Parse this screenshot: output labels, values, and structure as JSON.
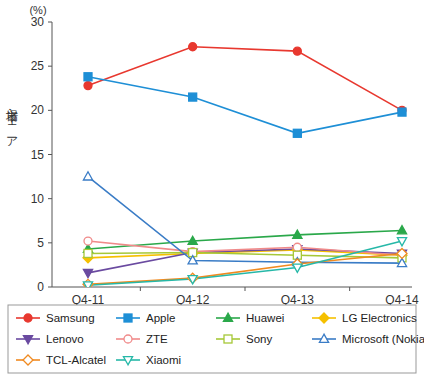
{
  "chart_data": {
    "type": "line",
    "y_label": "市場シェア",
    "y_unit_label": "(%)",
    "categories": [
      "Q4-11",
      "Q4-12",
      "Q4-13",
      "Q4-14"
    ],
    "ylim": [
      0,
      30
    ],
    "yticks": [
      0,
      5,
      10,
      15,
      20,
      25,
      30
    ],
    "grid": false,
    "legend": "bottom",
    "series": [
      {
        "name": "Samsung",
        "color": "#e8382f",
        "marker": "circle",
        "values": [
          22.8,
          27.2,
          26.7,
          20.0
        ]
      },
      {
        "name": "Apple",
        "color": "#1e8fd6",
        "marker": "square",
        "values": [
          23.8,
          21.5,
          17.4,
          19.8
        ]
      },
      {
        "name": "Huawei",
        "color": "#2aa84a",
        "marker": "triangle",
        "values": [
          4.3,
          5.2,
          5.9,
          6.4
        ]
      },
      {
        "name": "LG Electronics",
        "color": "#f5c000",
        "marker": "diamond",
        "values": [
          3.3,
          3.8,
          4.2,
          3.6
        ]
      },
      {
        "name": "Lenovo",
        "color": "#6a4aa0",
        "marker": "triangle-down",
        "values": [
          1.6,
          3.9,
          4.3,
          3.8
        ]
      },
      {
        "name": "ZTE",
        "color": "#f08a8a",
        "marker": "open-circle",
        "values": [
          5.2,
          4.0,
          4.5,
          3.6
        ]
      },
      {
        "name": "Sony",
        "color": "#a6c838",
        "marker": "open-square",
        "values": [
          3.8,
          3.9,
          3.6,
          3.3
        ]
      },
      {
        "name": "Microsoft (Nokia)",
        "color": "#3a7cc6",
        "marker": "open-triangle",
        "values": [
          12.5,
          3.0,
          2.8,
          2.7
        ]
      },
      {
        "name": "TCL-Alcatel",
        "color": "#f08a20",
        "marker": "open-diamond",
        "values": [
          0.3,
          1.0,
          2.6,
          3.8
        ]
      },
      {
        "name": "Xiaomi",
        "color": "#26b8a8",
        "marker": "open-triangle-down",
        "values": [
          0.2,
          0.9,
          2.2,
          5.2
        ]
      }
    ]
  }
}
